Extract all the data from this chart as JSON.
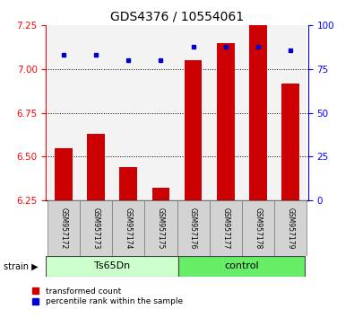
{
  "title": "GDS4376 / 10554061",
  "samples": [
    "GSM957172",
    "GSM957173",
    "GSM957174",
    "GSM957175",
    "GSM957176",
    "GSM957177",
    "GSM957178",
    "GSM957179"
  ],
  "transformed_counts": [
    6.55,
    6.63,
    6.44,
    6.32,
    7.05,
    7.15,
    7.25,
    6.92
  ],
  "percentile_ranks": [
    83,
    83,
    80,
    80,
    88,
    88,
    88,
    86
  ],
  "ylim_left": [
    6.25,
    7.25
  ],
  "ylim_right": [
    0,
    100
  ],
  "yticks_left": [
    6.25,
    6.5,
    6.75,
    7.0,
    7.25
  ],
  "yticks_right": [
    0,
    25,
    50,
    75,
    100
  ],
  "bar_color": "#cc0000",
  "dot_color": "#0000cc",
  "group_color_ts65dn": "#ccffcc",
  "group_color_control": "#66ee66",
  "sample_bg_color": "#d3d3d3",
  "legend_bar_label": "transformed count",
  "legend_dot_label": "percentile rank within the sample",
  "strain_label": "strain",
  "title_fontsize": 10,
  "tick_fontsize": 7.5,
  "sample_label_fontsize": 5.5,
  "group_label_fontsize": 8,
  "legend_fontsize": 6.5
}
